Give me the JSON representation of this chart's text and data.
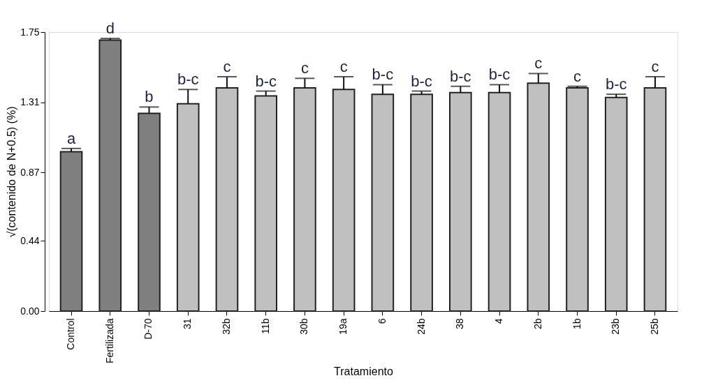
{
  "chart_data": {
    "type": "bar",
    "xlabel": "Tratamiento",
    "ylabel": "√(contenido de N+0.5) (%)",
    "categories": [
      "Control",
      "Fertilizada",
      "D-70",
      "31",
      "32b",
      "11b",
      "30b",
      "19a",
      "6",
      "24b",
      "38",
      "4",
      "2b",
      "1b",
      "23b",
      "25b"
    ],
    "values": [
      1.0,
      1.7,
      1.24,
      1.3,
      1.4,
      1.35,
      1.4,
      1.39,
      1.36,
      1.36,
      1.37,
      1.37,
      1.43,
      1.4,
      1.34,
      1.4
    ],
    "colors": [
      "#7f7f7f",
      "#7f7f7f",
      "#7f7f7f",
      "#c0c0c0",
      "#c0c0c0",
      "#c0c0c0",
      "#c0c0c0",
      "#c0c0c0",
      "#c0c0c0",
      "#c0c0c0",
      "#c0c0c0",
      "#c0c0c0",
      "#c0c0c0",
      "#c0c0c0",
      "#c0c0c0",
      "#c0c0c0"
    ],
    "errors": [
      [
        1.0,
        1.02
      ],
      [
        1.7,
        1.71
      ],
      [
        1.24,
        1.28
      ],
      [
        1.3,
        1.39
      ],
      [
        1.4,
        1.47
      ],
      [
        1.35,
        1.38
      ],
      [
        1.4,
        1.46
      ],
      [
        1.39,
        1.47
      ],
      [
        1.36,
        1.42
      ],
      [
        1.36,
        1.38
      ],
      [
        1.37,
        1.41
      ],
      [
        1.37,
        1.42
      ],
      [
        1.43,
        1.49
      ],
      [
        1.4,
        1.41
      ],
      [
        1.34,
        1.36
      ],
      [
        1.4,
        1.47
      ]
    ],
    "ylim": [
      0,
      1.75
    ],
    "yticks": [
      {
        "value": 0,
        "label": "0.00"
      },
      0.44,
      0.87,
      1.31,
      1.75
    ],
    "grid": false,
    "legend": false,
    "annotations": [
      {
        "text": "a",
        "x": "Control",
        "y": 1.02
      },
      {
        "text": "d",
        "x": "Fertilizada",
        "y": 1.71
      },
      {
        "text": "b",
        "x": "D-70",
        "y": 1.28
      },
      {
        "text": "b-c",
        "x": "31",
        "y": 1.39
      },
      {
        "text": "c",
        "x": "32b",
        "y": 1.47
      },
      {
        "text": "b-c",
        "x": "11b",
        "y": 1.38
      },
      {
        "text": "c",
        "x": "30b",
        "y": 1.46
      },
      {
        "text": "c",
        "x": "19a",
        "y": 1.47
      },
      {
        "text": "b-c",
        "x": "6",
        "y": 1.42
      },
      {
        "text": "b-c",
        "x": "24b",
        "y": 1.38
      },
      {
        "text": "b-c",
        "x": "38",
        "y": 1.41
      },
      {
        "text": "b-c",
        "x": "4",
        "y": 1.42
      },
      {
        "text": "c",
        "x": "2b",
        "y": 1.49
      },
      {
        "text": "c",
        "x": "1b",
        "y": 1.41
      },
      {
        "text": "b-c",
        "x": "23b",
        "y": 1.36
      },
      {
        "text": "c",
        "x": "25b",
        "y": 1.47
      }
    ]
  }
}
